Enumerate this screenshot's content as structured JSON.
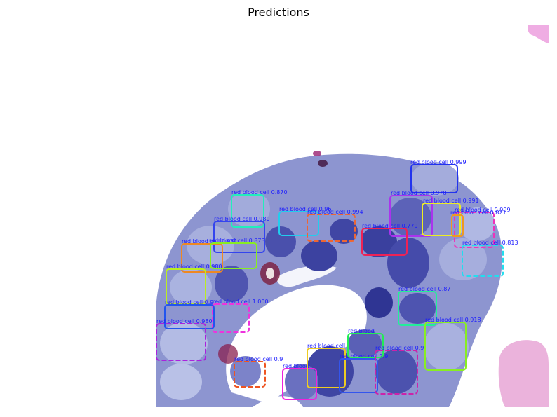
{
  "figure": {
    "title": "Predictions"
  },
  "colors": {
    "label_text": "#1a1aff",
    "cell_fill": "#7d86c9",
    "cell_light": "#b7bfe6",
    "cell_dark": "#2b2f8f",
    "background": "#ffffff",
    "stain_pink": "#e8a0d8"
  },
  "detections": [
    {
      "label": "red blood cell 0.999",
      "color": "#2233ee",
      "style": "solid"
    },
    {
      "label": "red blood cell 0.870",
      "color": "#22eebb",
      "style": "solid"
    },
    {
      "label": "red blood cell 0.978",
      "color": "#aa33ee",
      "style": "solid"
    },
    {
      "label": "red blood cell 0.991",
      "color": "#eeee22",
      "style": "solid"
    },
    {
      "label": "red blood cell 0.999",
      "color": "#ee33bb",
      "style": "dashed"
    },
    {
      "label": "red blood cell 0.821",
      "color": "#ee9922",
      "style": "solid"
    },
    {
      "label": "red blood cell 0.96",
      "color": "#22ccee",
      "style": "solid"
    },
    {
      "label": "red blood cell 0.994",
      "color": "#ee6633",
      "style": "dashed"
    },
    {
      "label": "red blood cell 0.980",
      "color": "#3344ee",
      "style": "solid"
    },
    {
      "label": "red blood cell 0.779",
      "color": "#ee2255",
      "style": "solid"
    },
    {
      "label": "red blood cell 0.813",
      "color": "#22ddee",
      "style": "dashed"
    },
    {
      "label": "red blood cell 0.981",
      "color": "#ee8822",
      "style": "solid"
    },
    {
      "label": "red blood cell 0.873",
      "color": "#88ee22",
      "style": "solid"
    },
    {
      "label": "red blood cell 0.980",
      "color": "#bbee22",
      "style": "solid"
    },
    {
      "label": "red blood cell 0.87",
      "color": "#22ee99",
      "style": "solid"
    },
    {
      "label": "red blood cell 1.000",
      "color": "#ee33dd",
      "style": "dashed"
    },
    {
      "label": "red blood cell 0.9",
      "color": "#2255ee",
      "style": "solid"
    },
    {
      "label": "red blood cell 0.918",
      "color": "#88ee22",
      "style": "solid"
    },
    {
      "label": "red blood cell 0.980",
      "color": "#aa22dd",
      "style": "dashed"
    },
    {
      "label": "red blood cell 0.9",
      "color": "#ee5522",
      "style": "dashed"
    },
    {
      "label": "red blood",
      "color": "#ee22dd",
      "style": "solid"
    },
    {
      "label": "red blood cell",
      "color": "#eecc22",
      "style": "solid"
    },
    {
      "label": "red blood cell 0.9",
      "color": "#3355ee",
      "style": "solid"
    },
    {
      "label": "red blood",
      "color": "#22ee55",
      "style": "solid"
    },
    {
      "label": "red blood cell 0.9",
      "color": "#cc22aa",
      "style": "dashed"
    }
  ]
}
